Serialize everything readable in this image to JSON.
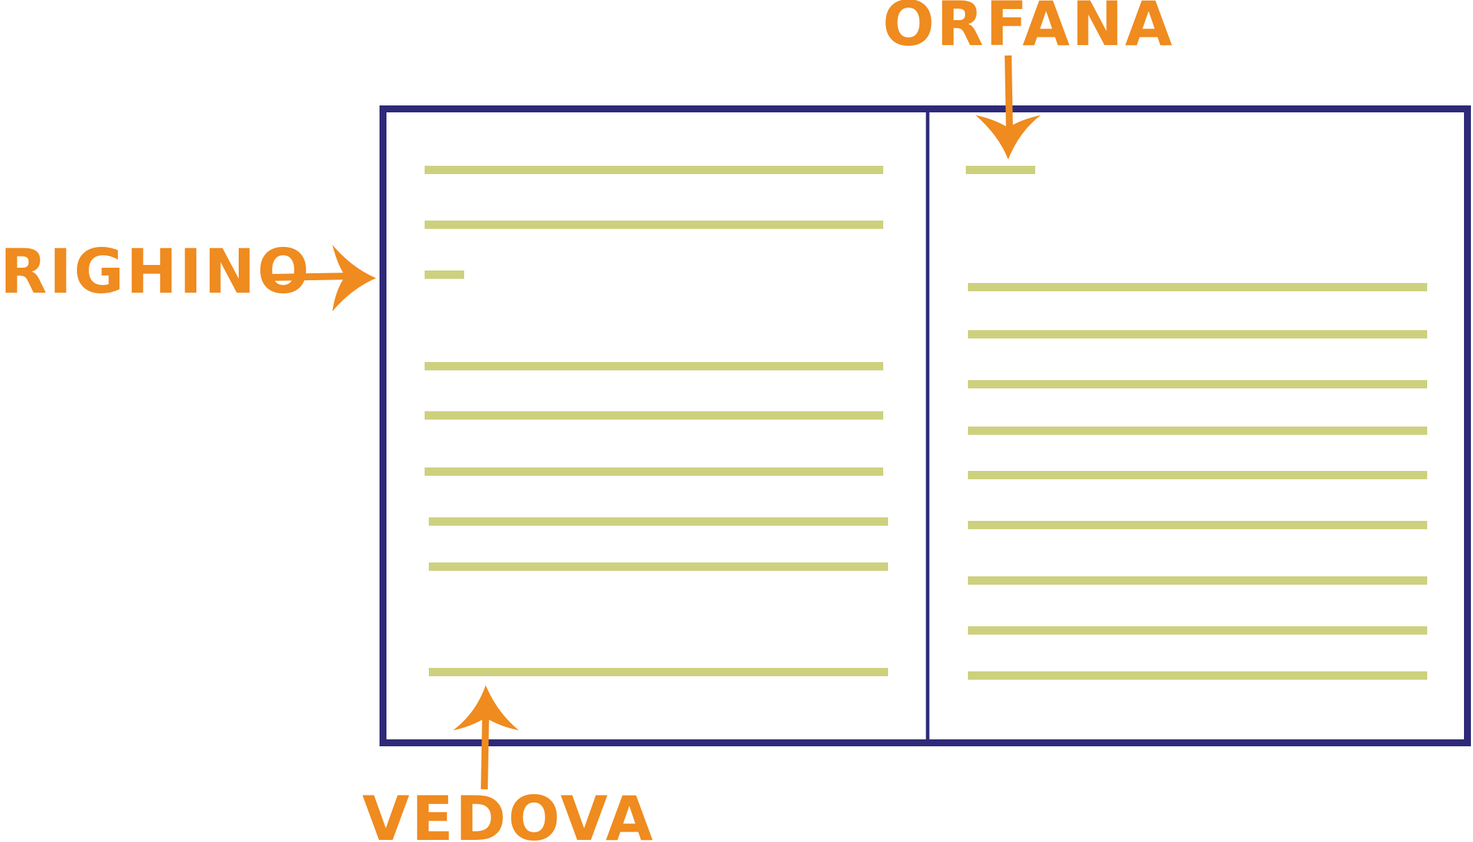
{
  "labels": {
    "orfana": "ORFANA",
    "righino": "RIGHINO",
    "vedova": "VEDOVA"
  },
  "colors": {
    "frame": "#2e2a78",
    "text_line": "#cdd17e",
    "annotation": "#ef8b1f",
    "background": "#ffffff"
  }
}
